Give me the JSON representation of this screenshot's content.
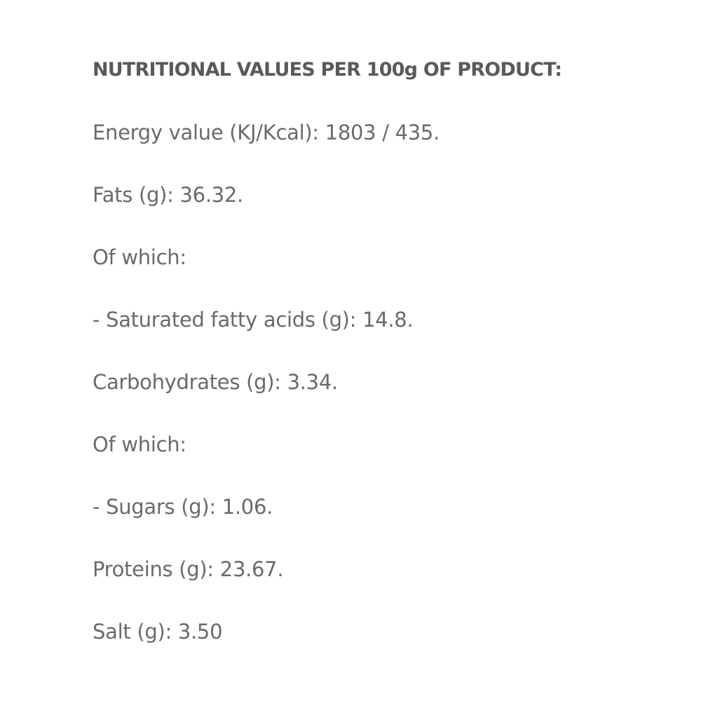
{
  "heading": "NUTRITIONAL VALUES PER 100g OF PRODUCT:",
  "lines": [
    "Energy value (KJ/Kcal): 1803 / 435.",
    "Fats (g): 36.32.",
    "Of which:",
    "- Saturated fatty acids (g): 14.8.",
    "Carbohydrates (g): 3.34.",
    "Of which:",
    "- Sugars (g): 1.06.",
    "Proteins (g): 23.67.",
    "Salt (g): 3.50"
  ]
}
